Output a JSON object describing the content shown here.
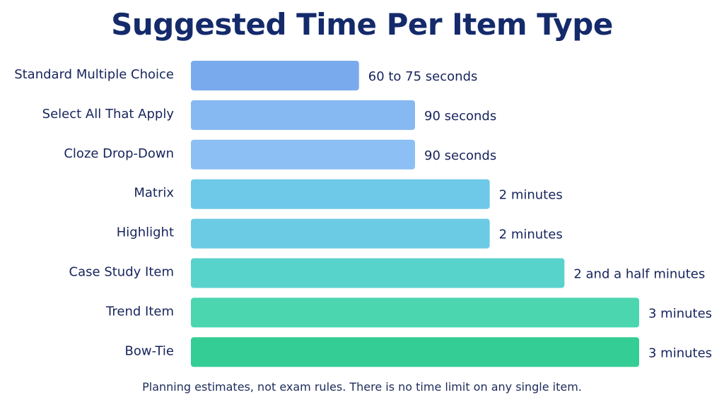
{
  "chart_data": {
    "type": "bar",
    "orientation": "horizontal",
    "title": "Suggested Time Per Item Type",
    "categories": [
      "Standard Multiple Choice",
      "Select All That Apply",
      "Cloze Drop-Down",
      "Matrix",
      "Highlight",
      "Case Study Item",
      "Trend Item",
      "Bow-Tie"
    ],
    "values": [
      67.5,
      90,
      90,
      120,
      120,
      150,
      180,
      180
    ],
    "value_unit": "seconds",
    "data_labels": [
      "60 to 75 seconds",
      "90 seconds",
      "90 seconds",
      "2 minutes",
      "2 minutes",
      "2 and a half minutes",
      "3 minutes",
      "3 minutes"
    ],
    "xlim": [
      0,
      180
    ],
    "grid": false,
    "colors": [
      "#7aaaee",
      "#86b8f2",
      "#8cc0f4",
      "#6ec8e8",
      "#6ccbe4",
      "#58d3cc",
      "#4bd6b0",
      "#35cd96"
    ]
  },
  "footnote": "Planning estimates, not exam rules. There is no time limit on any single item."
}
